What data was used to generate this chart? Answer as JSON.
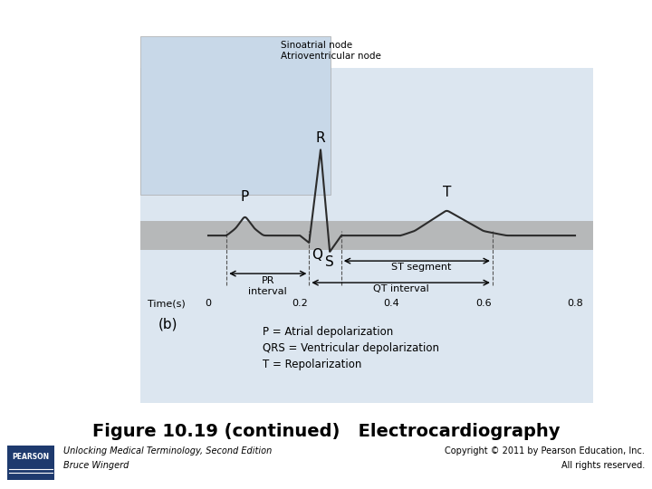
{
  "title": "Figure 10.19 (continued)   Electrocardiography",
  "title_fontsize": 14,
  "title_fontweight": "bold",
  "bg_color": "#ffffff",
  "panel_bg": "#dce6f0",
  "footer_line_color": "#8B1A1A",
  "footer_bg": "#ffffff",
  "pearson_box_color": "#1e3a6e",
  "footer_left_line1": "Unlocking Medical Terminology, Second Edition",
  "footer_left_line2": "Bruce Wingerd",
  "footer_right_line1": "Copyright © 2011 by Pearson Education, Inc.",
  "footer_right_line2": "All rights reserved.",
  "label_b": "(b)",
  "legend_lines": [
    "P = Atrial depolarization",
    "QRS = Ventricular depolarization",
    "T = Repolarization"
  ],
  "time_label": "Time(s)",
  "time_ticks": [
    0,
    0.2,
    0.4,
    0.6,
    0.8
  ],
  "ecg_color": "#2c2c2c",
  "annotation_color": "#2c2c2c",
  "sinoatrial_label": "Sinoatrial node",
  "av_label": "Atrioventricular node"
}
